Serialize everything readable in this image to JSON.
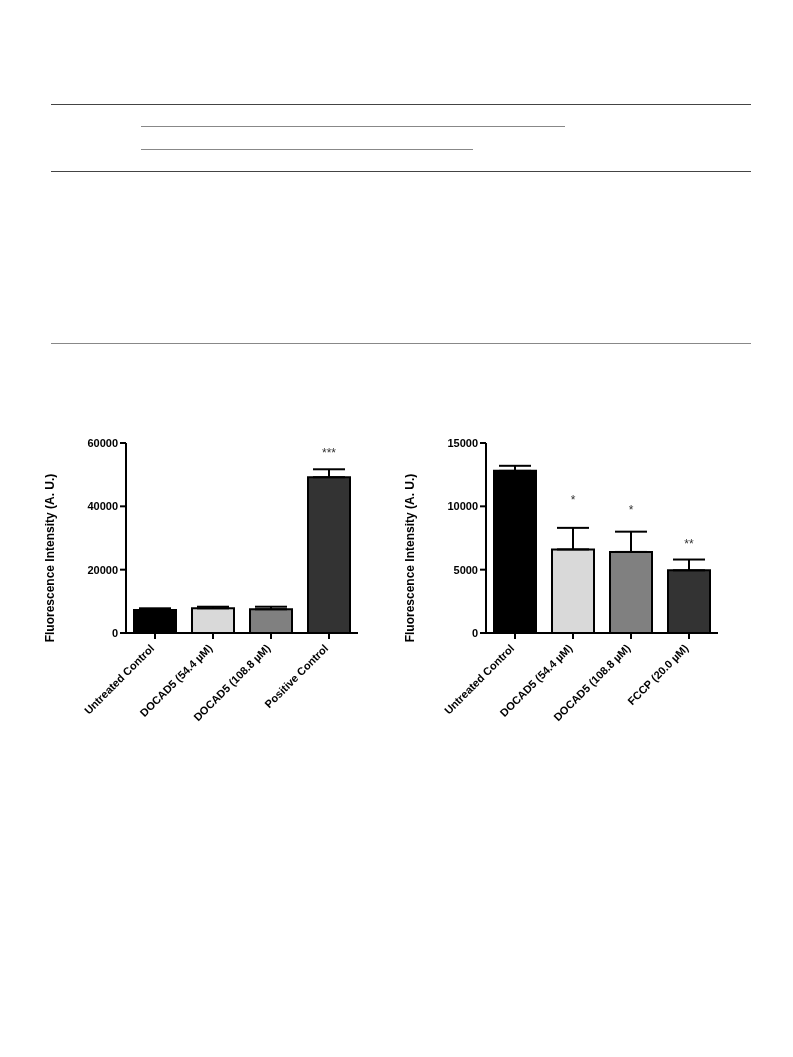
{
  "chart_data": [
    {
      "type": "bar",
      "categories": [
        "Untreated Control",
        "DOCAD5 (54.4 µM)",
        "DOCAD5 (108.8 µM)",
        "Positive Control"
      ],
      "values": [
        7300,
        7800,
        7500,
        49200
      ],
      "colors": [
        "#000000",
        "#d9d9d9",
        "#808080",
        "#333333"
      ],
      "errors": [
        [
          7300,
          7800
        ],
        [
          7800,
          8300
        ],
        [
          7500,
          8300
        ],
        [
          49200,
          51700
        ]
      ],
      "ylabel": "Fluorescence Intensity (A. U.)",
      "ylim": [
        0,
        60000
      ],
      "yticks": [
        0,
        20000,
        40000,
        60000
      ],
      "grid": false,
      "legend": false,
      "annotations": [
        "***"
      ]
    },
    {
      "type": "bar",
      "categories": [
        "Untreated Control",
        "DOCAD5 (54.4 µM)",
        "DOCAD5 (108.8 µM)",
        "FCCP (20.0 µM)"
      ],
      "values": [
        12800,
        6600,
        6400,
        4950
      ],
      "colors": [
        "#000000",
        "#d9d9d9",
        "#808080",
        "#333333"
      ],
      "errors": [
        [
          12800,
          13200
        ],
        [
          6600,
          8300
        ],
        [
          6400,
          8000
        ],
        [
          4950,
          5800
        ]
      ],
      "ylabel": "Fluorescence Intensity (A. U.)",
      "ylim": [
        0,
        15000
      ],
      "yticks": [
        0,
        5000,
        10000,
        15000
      ],
      "grid": false,
      "legend": false,
      "annotations": [
        "*",
        "*",
        "**"
      ]
    }
  ]
}
